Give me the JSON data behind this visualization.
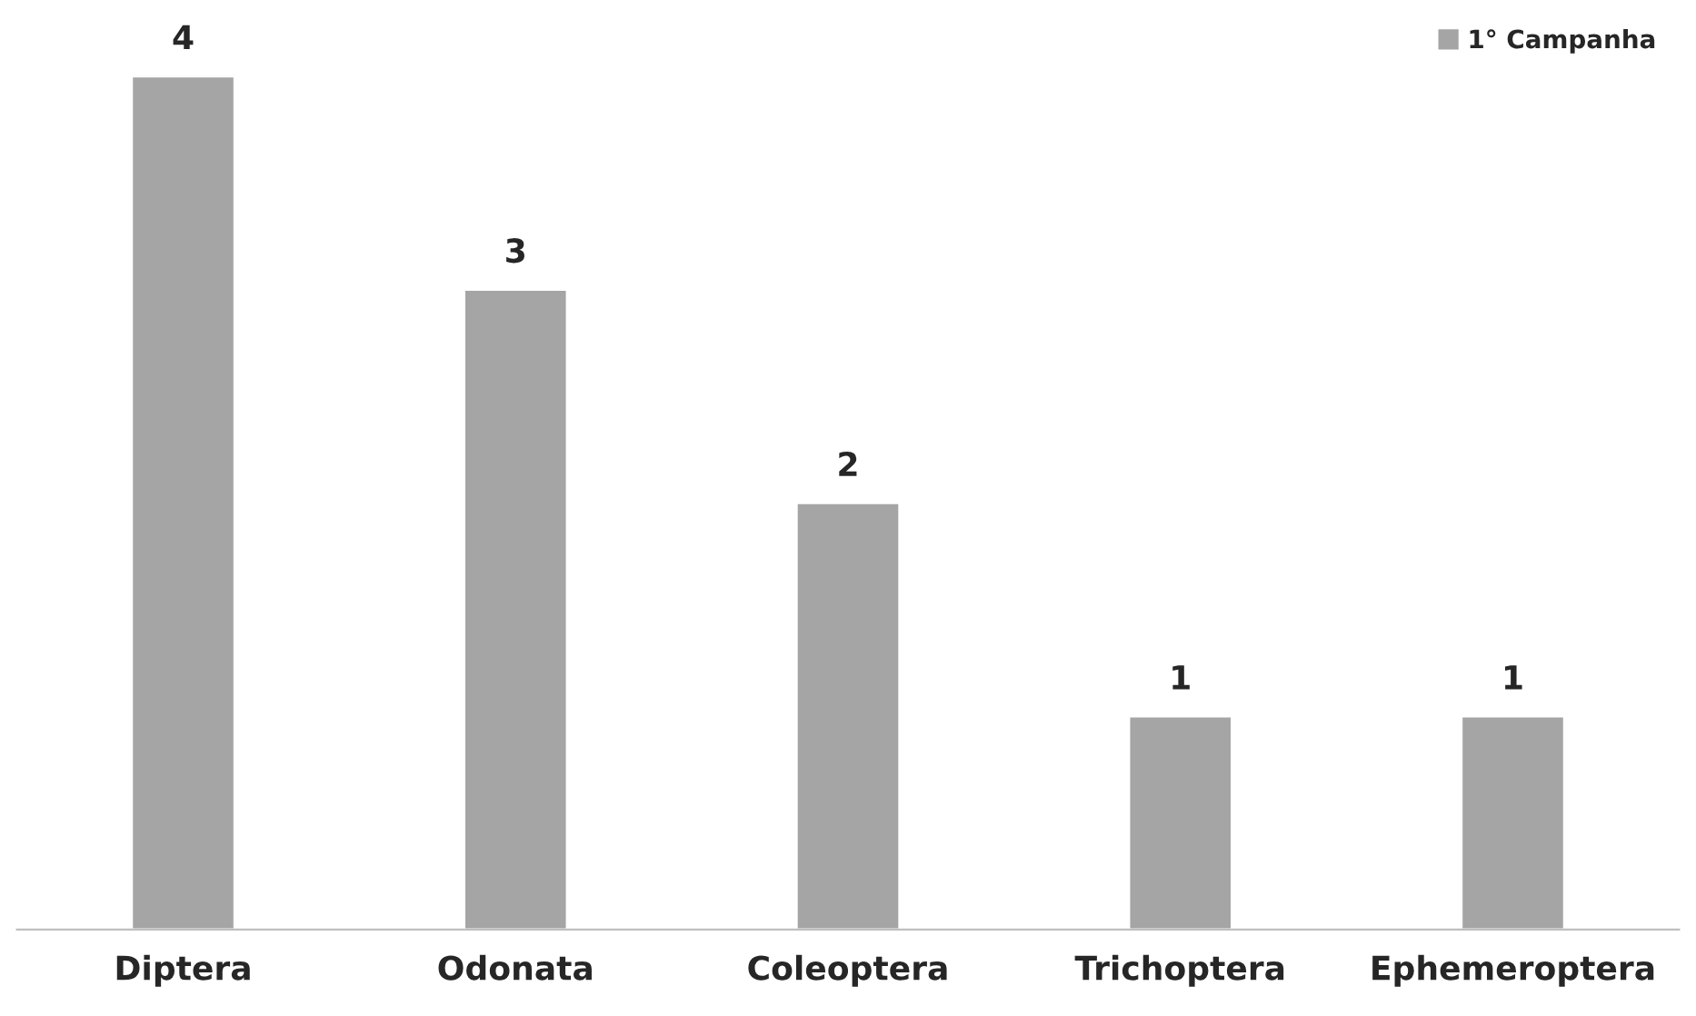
{
  "chart_data": {
    "type": "bar",
    "categories": [
      "Diptera",
      "Odonata",
      "Coleoptera",
      "Trichoptera",
      "Ephemeroptera"
    ],
    "series": [
      {
        "name": "1° Campanha",
        "color": "#a5a5a5",
        "values": [
          4,
          3,
          2,
          1,
          1
        ]
      }
    ],
    "data_labels": true,
    "legend": "top right",
    "grid": false,
    "tick_labels": "x"
  }
}
